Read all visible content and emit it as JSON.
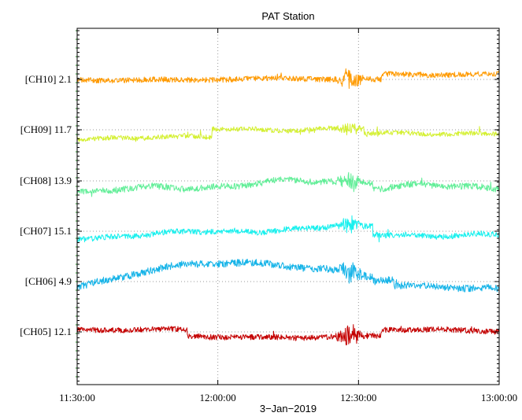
{
  "chart_data": {
    "type": "line",
    "title": "PAT Station",
    "xlabel": "3−Jan−2019",
    "ylabel": "",
    "x_range": [
      "11:30:00",
      "13:00:00"
    ],
    "x_ticks": [
      "11:30:00",
      "12:00:00",
      "12:30:00",
      "13:00:00"
    ],
    "grid": true,
    "legend": "none",
    "series": [
      {
        "label": "[CH10] 2.1",
        "color": "#ff9a00"
      },
      {
        "label": "[CH09] 11.7",
        "color": "#d4f032"
      },
      {
        "label": "[CH08] 13.9",
        "color": "#62ee98"
      },
      {
        "label": "[CH07] 15.1",
        "color": "#1af0ee"
      },
      {
        "label": "[CH06] 4.9",
        "color": "#17b4e8"
      },
      {
        "label": "[CH05] 12.1",
        "color": "#c40000"
      }
    ]
  }
}
